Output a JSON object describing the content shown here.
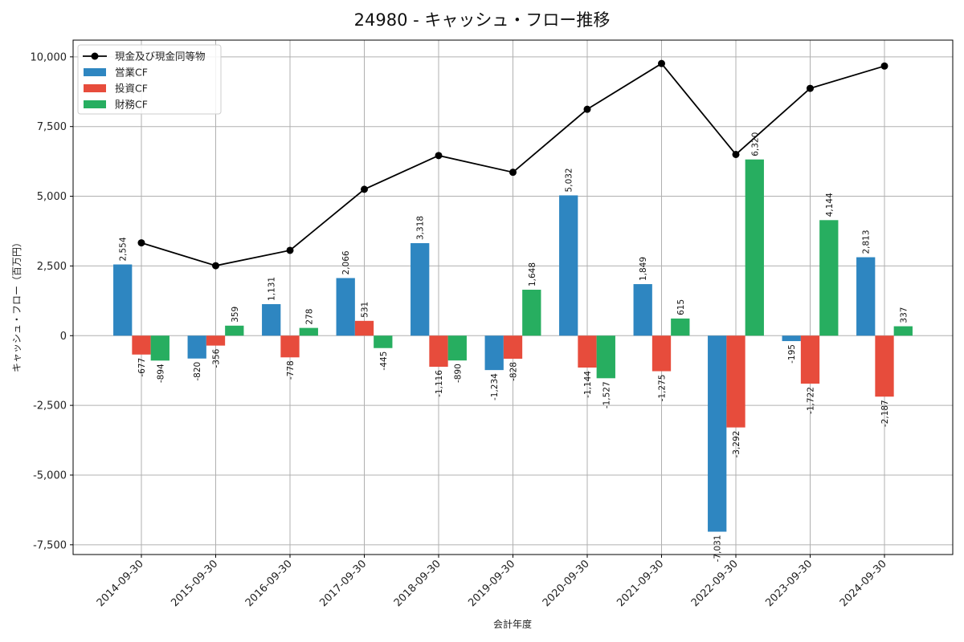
{
  "chart_data": {
    "type": "bar",
    "title": "24980 - キャッシュ・フロー推移",
    "xlabel": "会計年度",
    "ylabel": "キャッシュ・フロー（百万円）",
    "ylim": [
      -7850,
      10600
    ],
    "yticks": [
      -7500,
      -5000,
      -2500,
      0,
      2500,
      5000,
      7500,
      10000
    ],
    "ytick_labels": [
      "-7,500",
      "-5,000",
      "-2,500",
      "0",
      "2,500",
      "5,000",
      "7,500",
      "10,000"
    ],
    "grid": true,
    "legend_position": "top-left",
    "categories": [
      "2014-09-30",
      "2015-09-30",
      "2016-09-30",
      "2017-09-30",
      "2018-09-30",
      "2019-09-30",
      "2020-09-30",
      "2021-09-30",
      "2022-09-30",
      "2023-09-30",
      "2024-09-30"
    ],
    "series": [
      {
        "name": "営業CF",
        "type": "bar",
        "color": "#2e86c1",
        "values": [
          2554,
          -820,
          1131,
          2066,
          3318,
          -1234,
          5032,
          1849,
          -7031,
          -195,
          2813
        ],
        "labels": [
          "2,554",
          "-820",
          "1,131",
          "2,066",
          "3,318",
          "-1,234",
          "5,032",
          "1,849",
          "-7,031",
          "-195",
          "2,813"
        ]
      },
      {
        "name": "投資CF",
        "type": "bar",
        "color": "#e74c3c",
        "values": [
          -677,
          -356,
          -778,
          531,
          -1116,
          -828,
          -1144,
          -1275,
          -3292,
          -1722,
          -2187
        ],
        "labels": [
          "-677",
          "-356",
          "-778",
          "531",
          "-1,116",
          "-828",
          "-1,144",
          "-1,275",
          "-3,292",
          "-1,722",
          "-2,187"
        ]
      },
      {
        "name": "財務CF",
        "type": "bar",
        "color": "#27ae60",
        "values": [
          -894,
          359,
          278,
          -445,
          -890,
          1648,
          -1527,
          615,
          6320,
          4144,
          337
        ],
        "labels": [
          "-894",
          "359",
          "278",
          "-445",
          "-890",
          "1,648",
          "-1,527",
          "615",
          "6,320",
          "4,144",
          "337"
        ]
      },
      {
        "name": "現金及び現金同等物",
        "type": "line",
        "color": "#000000",
        "values": [
          3330,
          2510,
          3060,
          5250,
          6460,
          5860,
          8120,
          9760,
          6500,
          8870,
          9670
        ]
      }
    ]
  }
}
